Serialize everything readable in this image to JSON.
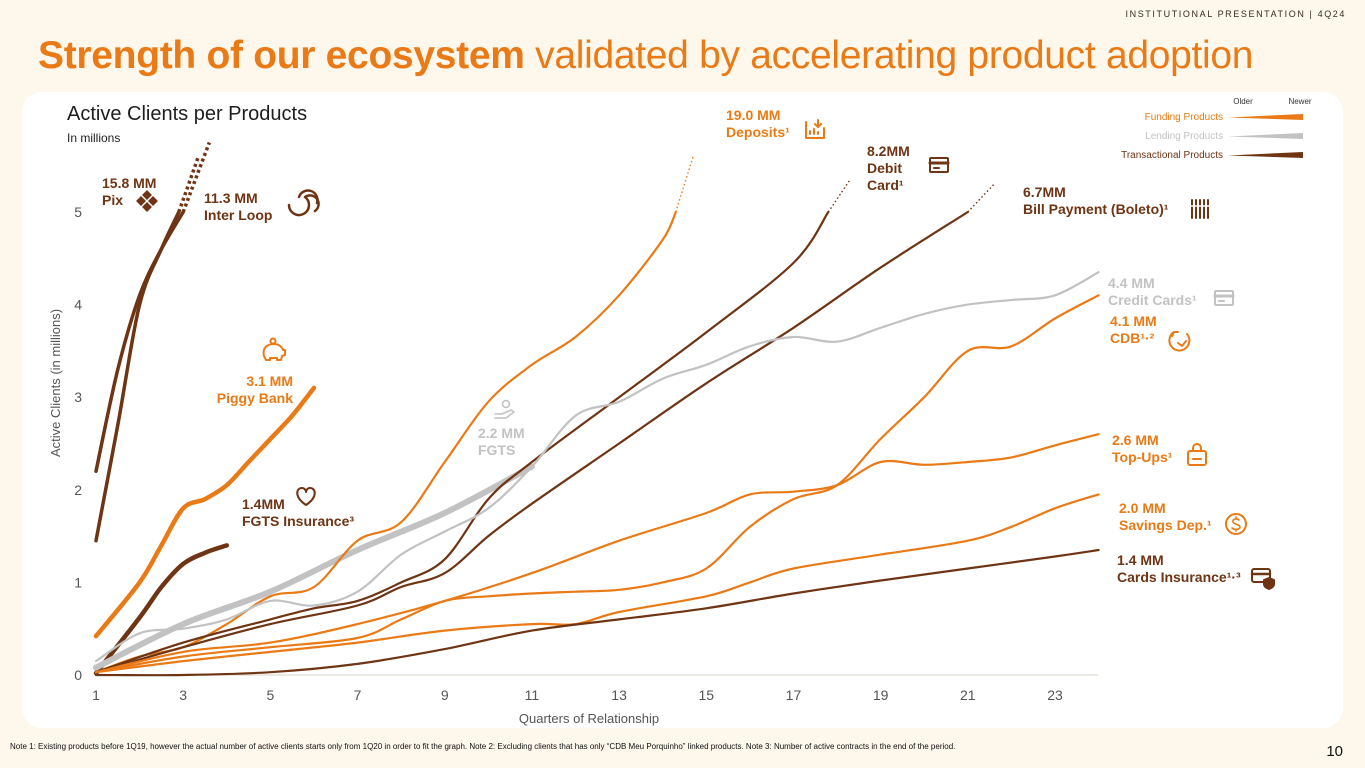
{
  "header": {
    "tag": "INSTITUTIONAL PRESENTATION | 4Q24",
    "title_bold": "Strength of our ecosystem",
    "title_rest": " validated by accelerating product adoption"
  },
  "chart_title": "Active Clients per Products",
  "chart_subtitle": "In millions",
  "footer": {
    "note": "Note 1: Existing products before 1Q19, however the actual number of active clients starts only from 1Q20 in order to fit the graph. Note 2: Excluding clients that has only “CDB Meu Porquinho” linked products. Note 3: Number of active contracts in the end of the period.",
    "page": "10"
  },
  "colors": {
    "funding": "#ea7a16",
    "lending": "#c2c2c2",
    "transactional": "#6e3414",
    "axis_text": "#555555"
  },
  "legend": {
    "older": "Older",
    "newer": "Newer",
    "items": [
      {
        "label": "Funding Products",
        "color": "#ea7a16"
      },
      {
        "label": "Lending Products",
        "color": "#c2c2c2"
      },
      {
        "label": "Transactional Products",
        "color": "#6e3414"
      }
    ]
  },
  "chart_data": {
    "type": "line",
    "title": "Active Clients per Products",
    "subtitle": "In millions",
    "xlabel": "Quarters  of Relationship",
    "ylabel": "Active Clients (in millions)",
    "xlim": [
      1,
      24
    ],
    "ylim": [
      0,
      5.7
    ],
    "xticks": [
      1,
      3,
      5,
      7,
      9,
      11,
      13,
      15,
      17,
      19,
      21,
      23
    ],
    "yticks": [
      0,
      1,
      2,
      3,
      4,
      5
    ],
    "series": [
      {
        "name": "Pix",
        "group": "transactional",
        "width": 3.5,
        "points": [
          [
            1,
            2.2
          ],
          [
            1.5,
            3.3
          ],
          [
            2,
            4.1
          ],
          [
            2.5,
            4.6
          ],
          [
            3,
            5.0
          ]
        ],
        "cont": [
          [
            3,
            5.0
          ],
          [
            3.6,
            5.75
          ]
        ],
        "labels": [
          "15.8 MM",
          "Pix"
        ],
        "icon": "pix-icon"
      },
      {
        "name": "Inter Loop",
        "group": "transactional",
        "width": 3.5,
        "points": [
          [
            1,
            1.45
          ],
          [
            1.5,
            2.7
          ],
          [
            2,
            4.0
          ],
          [
            2.5,
            4.6
          ],
          [
            2.9,
            5.0
          ]
        ],
        "cont": [
          [
            2.9,
            5.0
          ],
          [
            3.35,
            5.6
          ]
        ],
        "labels": [
          "11.3 MM",
          "Inter Loop"
        ],
        "icon": "loop-icon"
      },
      {
        "name": "Piggy Bank",
        "group": "funding",
        "width": 4.5,
        "points": [
          [
            1,
            0.42
          ],
          [
            2,
            1.0
          ],
          [
            2.5,
            1.4
          ],
          [
            3,
            1.8
          ],
          [
            3.5,
            1.9
          ],
          [
            4,
            2.05
          ],
          [
            4.5,
            2.3
          ],
          [
            5,
            2.55
          ],
          [
            5.5,
            2.8
          ],
          [
            6,
            3.1
          ]
        ],
        "labels": [
          "3.1 MM",
          "Piggy Bank"
        ],
        "icon": "piggy-bank-icon"
      },
      {
        "name": "FGTS Insurance",
        "group": "transactional",
        "width": 4.5,
        "points": [
          [
            1,
            0.02
          ],
          [
            2,
            0.62
          ],
          [
            2.5,
            0.95
          ],
          [
            3,
            1.2
          ],
          [
            3.5,
            1.32
          ],
          [
            4,
            1.4
          ]
        ],
        "labels": [
          "1.4MM",
          "FGTS Insurance³"
        ],
        "icon": "heart-icon"
      },
      {
        "name": "FGTS",
        "group": "lending",
        "width": 6,
        "points": [
          [
            1,
            0.08
          ],
          [
            3,
            0.55
          ],
          [
            5,
            0.9
          ],
          [
            7,
            1.35
          ],
          [
            9,
            1.75
          ],
          [
            11,
            2.25
          ]
        ],
        "labels": [
          "2.2 MM",
          "FGTS"
        ],
        "icon": "hand-coin-icon"
      },
      {
        "name": "Deposits",
        "group": "funding",
        "width": 2.2,
        "points": [
          [
            1,
            0.03
          ],
          [
            2,
            0.2
          ],
          [
            3,
            0.3
          ],
          [
            4,
            0.55
          ],
          [
            5,
            0.85
          ],
          [
            6,
            0.95
          ],
          [
            7,
            1.45
          ],
          [
            8,
            1.65
          ],
          [
            9,
            2.3
          ],
          [
            10,
            2.95
          ],
          [
            11,
            3.35
          ],
          [
            12,
            3.65
          ],
          [
            13,
            4.1
          ],
          [
            14,
            4.7
          ],
          [
            14.3,
            5.0
          ]
        ],
        "cont": [
          [
            14.3,
            5.0
          ],
          [
            14.7,
            5.6
          ]
        ],
        "labels": [
          "19.0 MM",
          "Deposits¹"
        ],
        "icon": "deposit-icon"
      },
      {
        "name": "Debit Card",
        "group": "transactional",
        "width": 2.2,
        "points": [
          [
            1,
            0.03
          ],
          [
            3,
            0.35
          ],
          [
            5,
            0.6
          ],
          [
            6,
            0.72
          ],
          [
            7,
            0.8
          ],
          [
            8,
            1.0
          ],
          [
            9,
            1.25
          ],
          [
            10,
            1.9
          ],
          [
            11,
            2.3
          ],
          [
            13,
            3.0
          ],
          [
            15,
            3.7
          ],
          [
            17,
            4.45
          ],
          [
            17.8,
            5.0
          ]
        ],
        "cont": [
          [
            17.8,
            5.0
          ],
          [
            18.3,
            5.35
          ]
        ],
        "labels": [
          "8.2MM",
          "Debit",
          "Card¹"
        ],
        "icon": "card-icon"
      },
      {
        "name": "Bill Payment (Boleto)",
        "group": "transactional",
        "width": 2.2,
        "points": [
          [
            1,
            0.03
          ],
          [
            3,
            0.3
          ],
          [
            5,
            0.55
          ],
          [
            7,
            0.75
          ],
          [
            8,
            0.95
          ],
          [
            9,
            1.1
          ],
          [
            10,
            1.5
          ],
          [
            11,
            1.85
          ],
          [
            13,
            2.5
          ],
          [
            15,
            3.15
          ],
          [
            17,
            3.75
          ],
          [
            19,
            4.4
          ],
          [
            21,
            5.0
          ]
        ],
        "cont": [
          [
            21,
            5.0
          ],
          [
            21.6,
            5.3
          ]
        ],
        "labels": [
          "6.7MM",
          "Bill Payment (Boleto)¹"
        ],
        "icon": "barcode-icon"
      },
      {
        "name": "Credit Cards",
        "group": "lending",
        "width": 2.2,
        "points": [
          [
            1,
            0.15
          ],
          [
            2,
            0.45
          ],
          [
            3,
            0.5
          ],
          [
            4,
            0.6
          ],
          [
            5,
            0.8
          ],
          [
            6,
            0.75
          ],
          [
            7,
            0.9
          ],
          [
            8,
            1.3
          ],
          [
            9,
            1.55
          ],
          [
            10,
            1.8
          ],
          [
            11,
            2.25
          ],
          [
            12,
            2.8
          ],
          [
            13,
            2.95
          ],
          [
            14,
            3.2
          ],
          [
            15,
            3.35
          ],
          [
            16,
            3.55
          ],
          [
            17,
            3.65
          ],
          [
            18,
            3.6
          ],
          [
            19,
            3.75
          ],
          [
            20,
            3.9
          ],
          [
            21,
            4.0
          ],
          [
            22,
            4.05
          ],
          [
            23,
            4.1
          ],
          [
            24,
            4.35
          ]
        ],
        "labels": [
          "4.4 MM",
          "Credit Cards¹"
        ],
        "icon": "credit-card-icon"
      },
      {
        "name": "CDB",
        "group": "funding",
        "width": 2.2,
        "points": [
          [
            1,
            0.03
          ],
          [
            3,
            0.2
          ],
          [
            5,
            0.3
          ],
          [
            7,
            0.4
          ],
          [
            8,
            0.6
          ],
          [
            9,
            0.8
          ],
          [
            10,
            0.85
          ],
          [
            11,
            0.88
          ],
          [
            12,
            0.9
          ],
          [
            13,
            0.92
          ],
          [
            14,
            1.0
          ],
          [
            15,
            1.15
          ],
          [
            16,
            1.6
          ],
          [
            17,
            1.9
          ],
          [
            18,
            2.05
          ],
          [
            19,
            2.55
          ],
          [
            20,
            3.0
          ],
          [
            21,
            3.5
          ],
          [
            22,
            3.55
          ],
          [
            23,
            3.85
          ],
          [
            24,
            4.1
          ]
        ],
        "labels": [
          "4.1 MM",
          "CDB¹·²"
        ],
        "icon": "cdb-icon"
      },
      {
        "name": "Top-Ups",
        "group": "funding",
        "width": 2.2,
        "points": [
          [
            1,
            0.03
          ],
          [
            3,
            0.25
          ],
          [
            5,
            0.35
          ],
          [
            7,
            0.55
          ],
          [
            9,
            0.8
          ],
          [
            11,
            1.1
          ],
          [
            13,
            1.45
          ],
          [
            15,
            1.75
          ],
          [
            16,
            1.95
          ],
          [
            17,
            1.98
          ],
          [
            18,
            2.05
          ],
          [
            19,
            2.3
          ],
          [
            20,
            2.27
          ],
          [
            21,
            2.3
          ],
          [
            22,
            2.35
          ],
          [
            23,
            2.48
          ],
          [
            24,
            2.6
          ]
        ],
        "labels": [
          "2.6 MM",
          "Top-Ups¹"
        ],
        "icon": "bag-icon"
      },
      {
        "name": "Savings Dep.",
        "group": "funding",
        "width": 2.2,
        "points": [
          [
            1,
            0.03
          ],
          [
            3,
            0.15
          ],
          [
            5,
            0.25
          ],
          [
            7,
            0.35
          ],
          [
            9,
            0.48
          ],
          [
            11,
            0.55
          ],
          [
            12,
            0.55
          ],
          [
            13,
            0.68
          ],
          [
            15,
            0.85
          ],
          [
            16,
            1.0
          ],
          [
            17,
            1.15
          ],
          [
            19,
            1.3
          ],
          [
            21,
            1.45
          ],
          [
            22,
            1.6
          ],
          [
            23,
            1.8
          ],
          [
            24,
            1.95
          ]
        ],
        "labels": [
          "2.0 MM",
          "Savings Dep.¹"
        ],
        "icon": "dollar-coin-icon"
      },
      {
        "name": "Cards Insurance",
        "group": "transactional",
        "width": 2.2,
        "points": [
          [
            1,
            0.0
          ],
          [
            3,
            0.0
          ],
          [
            5,
            0.03
          ],
          [
            7,
            0.12
          ],
          [
            9,
            0.28
          ],
          [
            11,
            0.48
          ],
          [
            13,
            0.6
          ],
          [
            15,
            0.72
          ],
          [
            17,
            0.88
          ],
          [
            19,
            1.02
          ],
          [
            21,
            1.15
          ],
          [
            23,
            1.28
          ],
          [
            24,
            1.35
          ]
        ],
        "labels": [
          "1.4 MM",
          "Cards Insurance¹·³"
        ],
        "icon": "card-shield-icon"
      }
    ]
  }
}
